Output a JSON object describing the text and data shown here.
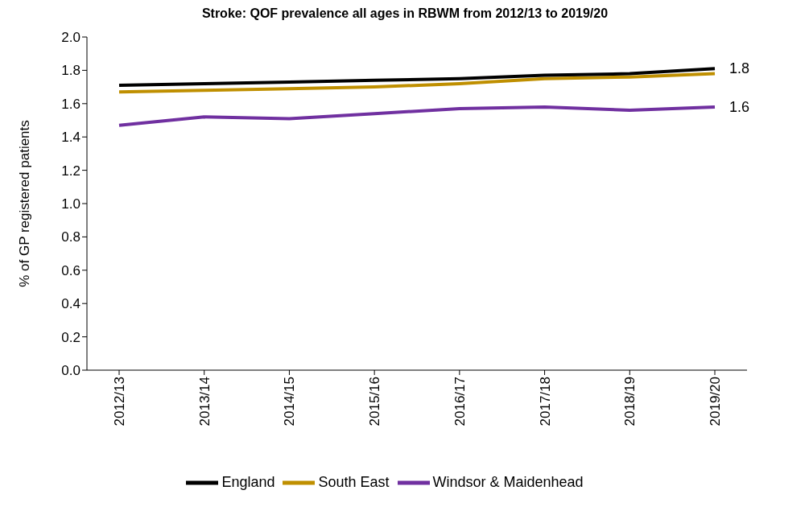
{
  "chart_data": {
    "type": "line",
    "title": "Stroke: QOF prevalence all ages in RBWM from 2012/13 to 2019/20",
    "ylabel": "% of GP registered patients",
    "categories": [
      "2012/13",
      "2013/14",
      "2014/15",
      "2015/16",
      "2016/17",
      "2017/18",
      "2018/19",
      "2019/20"
    ],
    "series": [
      {
        "name": "Windsor & Maidenhead",
        "color": "#7030a0",
        "values": [
          1.47,
          1.52,
          1.51,
          1.54,
          1.57,
          1.58,
          1.56,
          1.58
        ],
        "value_labels": [
          null,
          null,
          null,
          null,
          null,
          null,
          null,
          "1.6"
        ]
      },
      {
        "name": "South East",
        "color": "#bf8f00",
        "values": [
          1.67,
          1.68,
          1.69,
          1.7,
          1.72,
          1.75,
          1.76,
          1.78
        ],
        "value_labels": [
          null,
          null,
          null,
          null,
          null,
          null,
          null,
          null
        ]
      },
      {
        "name": "England",
        "color": "#000000",
        "values": [
          1.71,
          1.72,
          1.73,
          1.74,
          1.75,
          1.77,
          1.78,
          1.81
        ],
        "value_labels": [
          null,
          null,
          null,
          null,
          null,
          null,
          null,
          "1.8"
        ]
      }
    ],
    "ylim": [
      0,
      2.0
    ],
    "yticks": [
      {
        "value": 0,
        "label": "0.0"
      },
      {
        "value": 0.2,
        "label": "0.2"
      },
      {
        "value": 0.4,
        "label": "0.4"
      },
      {
        "value": 0.6,
        "label": "0.6"
      },
      {
        "value": 0.8,
        "label": "0.8"
      },
      {
        "value": 1.0,
        "label": "1.0"
      },
      {
        "value": 1.2,
        "label": "1.2"
      },
      {
        "value": 1.4,
        "label": "1.4"
      },
      {
        "value": 1.6,
        "label": "1.6"
      },
      {
        "value": 1.8,
        "label": "1.8"
      },
      {
        "value": 2.0,
        "label": "2.0"
      }
    ],
    "grid": false,
    "legend": "bottom",
    "marker": "none",
    "line_style": "solid"
  }
}
